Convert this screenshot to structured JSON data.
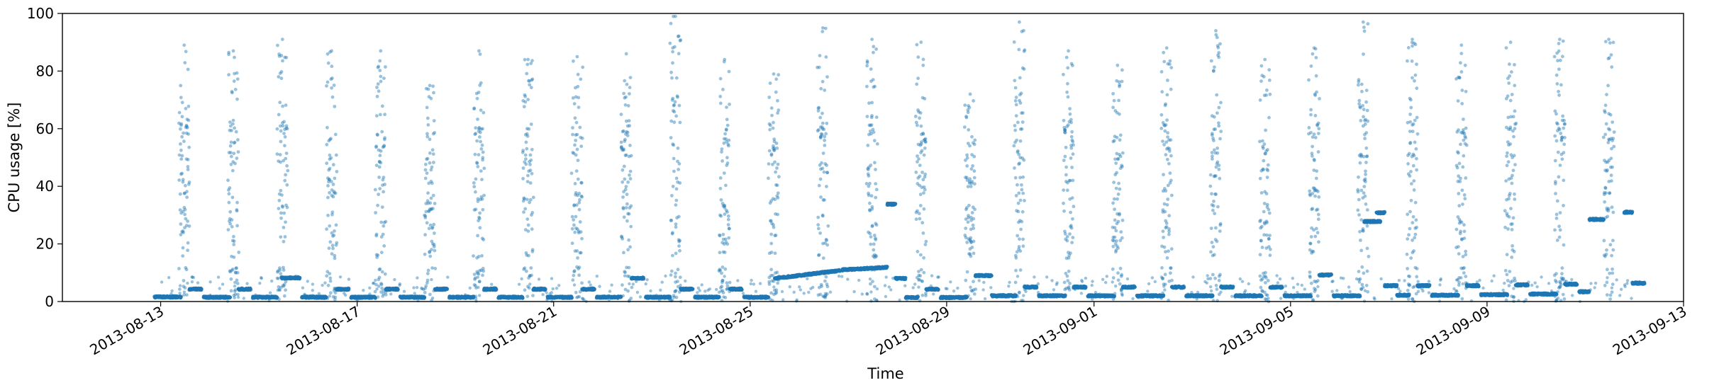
{
  "chart_data": {
    "type": "scatter",
    "title": "",
    "xlabel": "Time",
    "ylabel": "CPU usage [%]",
    "x_range": [
      "2013-08-11",
      "2013-09-13"
    ],
    "ylim": [
      0,
      100
    ],
    "yticks": [
      0,
      20,
      40,
      60,
      80,
      100
    ],
    "xticks": [
      "2013-08-13",
      "2013-08-17",
      "2013-08-21",
      "2013-08-25",
      "2013-08-29",
      "2013-09-01",
      "2013-09-05",
      "2013-09-09",
      "2013-09-13"
    ],
    "grid": false,
    "legend": "none",
    "marker_color": "#1f77b4",
    "marker_alpha": 0.45,
    "note_points": "approximately 5400 samples at roughly 7-minute intervals; low-level baseline values cluster between 1 and 10 percent, daytime bursts spread up to ~99 percent",
    "baseline_segments": [
      {
        "start": "2013-08-12 21:00",
        "end": "2013-08-13 10:00",
        "level": 1.6
      },
      {
        "start": "2013-08-13 14:00",
        "end": "2013-08-13 20:00",
        "level": 4.3
      },
      {
        "start": "2013-08-13 21:00",
        "end": "2013-08-14 10:00",
        "level": 1.5
      },
      {
        "start": "2013-08-14 14:00",
        "end": "2013-08-14 20:00",
        "level": 4.3
      },
      {
        "start": "2013-08-14 21:00",
        "end": "2013-08-15 09:00",
        "level": 1.5
      },
      {
        "start": "2013-08-15 11:00",
        "end": "2013-08-15 20:00",
        "level": 8.2
      },
      {
        "start": "2013-08-15 21:00",
        "end": "2013-08-16 09:00",
        "level": 1.5
      },
      {
        "start": "2013-08-16 14:00",
        "end": "2013-08-16 20:00",
        "level": 4.3
      },
      {
        "start": "2013-08-16 21:00",
        "end": "2013-08-17 09:00",
        "level": 1.5
      },
      {
        "start": "2013-08-17 14:00",
        "end": "2013-08-17 20:00",
        "level": 4.3
      },
      {
        "start": "2013-08-17 21:00",
        "end": "2013-08-18 09:00",
        "level": 1.5
      },
      {
        "start": "2013-08-18 14:00",
        "end": "2013-08-18 20:00",
        "level": 4.3
      },
      {
        "start": "2013-08-18 21:00",
        "end": "2013-08-19 09:00",
        "level": 1.5
      },
      {
        "start": "2013-08-19 14:00",
        "end": "2013-08-19 20:00",
        "level": 4.3
      },
      {
        "start": "2013-08-19 21:00",
        "end": "2013-08-20 09:00",
        "level": 1.5
      },
      {
        "start": "2013-08-20 14:00",
        "end": "2013-08-20 20:00",
        "level": 4.3
      },
      {
        "start": "2013-08-20 21:00",
        "end": "2013-08-21 09:00",
        "level": 1.5
      },
      {
        "start": "2013-08-21 14:00",
        "end": "2013-08-21 20:00",
        "level": 4.3
      },
      {
        "start": "2013-08-21 21:00",
        "end": "2013-08-22 09:00",
        "level": 1.5
      },
      {
        "start": "2013-08-22 14:00",
        "end": "2013-08-22 20:00",
        "level": 8.1
      },
      {
        "start": "2013-08-22 21:00",
        "end": "2013-08-23 09:00",
        "level": 1.5
      },
      {
        "start": "2013-08-23 14:00",
        "end": "2013-08-23 20:00",
        "level": 4.3
      },
      {
        "start": "2013-08-23 21:00",
        "end": "2013-08-24 09:00",
        "level": 1.5
      },
      {
        "start": "2013-08-24 14:00",
        "end": "2013-08-24 20:00",
        "level": 4.3
      },
      {
        "start": "2013-08-24 21:00",
        "end": "2013-08-25 09:00",
        "level": 1.5
      },
      {
        "start": "2013-08-25 12:00",
        "end": "2013-08-26 20:00",
        "level_start": 8.0,
        "level_end": 10.8
      },
      {
        "start": "2013-08-26 21:00",
        "end": "2013-08-27 19:00",
        "level_start": 11.0,
        "level_end": 11.9
      },
      {
        "start": "2013-08-27 19:00",
        "end": "2013-08-27 23:00",
        "level": 33.8
      },
      {
        "start": "2013-08-27 23:00",
        "end": "2013-08-28 04:00",
        "level": 8.0
      },
      {
        "start": "2013-08-28 04:00",
        "end": "2013-08-28 10:00",
        "level": 1.4
      },
      {
        "start": "2013-08-28 14:00",
        "end": "2013-08-28 20:00",
        "level": 4.3
      },
      {
        "start": "2013-08-28 21:00",
        "end": "2013-08-29 10:00",
        "level": 1.4
      },
      {
        "start": "2013-08-29 14:00",
        "end": "2013-08-29 22:00",
        "level": 9.0
      },
      {
        "start": "2013-08-29 22:00",
        "end": "2013-08-30 10:00",
        "level": 2.0
      },
      {
        "start": "2013-08-30 14:00",
        "end": "2013-08-30 20:00",
        "level": 5.0
      },
      {
        "start": "2013-08-30 21:00",
        "end": "2013-08-31 10:00",
        "level": 2.0
      },
      {
        "start": "2013-08-31 14:00",
        "end": "2013-08-31 20:00",
        "level": 5.0
      },
      {
        "start": "2013-08-31 21:00",
        "end": "2013-09-01 10:00",
        "level": 2.0
      },
      {
        "start": "2013-09-01 14:00",
        "end": "2013-09-01 20:00",
        "level": 5.0
      },
      {
        "start": "2013-09-01 21:00",
        "end": "2013-09-02 10:00",
        "level": 2.0
      },
      {
        "start": "2013-09-02 14:00",
        "end": "2013-09-02 20:00",
        "level": 5.0
      },
      {
        "start": "2013-09-02 21:00",
        "end": "2013-09-03 10:00",
        "level": 2.0
      },
      {
        "start": "2013-09-03 14:00",
        "end": "2013-09-03 20:00",
        "level": 5.0
      },
      {
        "start": "2013-09-03 21:00",
        "end": "2013-09-04 10:00",
        "level": 2.0
      },
      {
        "start": "2013-09-04 14:00",
        "end": "2013-09-04 20:00",
        "level": 5.0
      },
      {
        "start": "2013-09-04 21:00",
        "end": "2013-09-05 10:00",
        "level": 2.0
      },
      {
        "start": "2013-09-05 14:00",
        "end": "2013-09-05 20:00",
        "level": 9.2
      },
      {
        "start": "2013-09-05 21:00",
        "end": "2013-09-06 10:00",
        "level": 2.0
      },
      {
        "start": "2013-09-06 12:00",
        "end": "2013-09-06 20:00",
        "level": 27.8
      },
      {
        "start": "2013-09-06 18:00",
        "end": "2013-09-06 22:00",
        "level": 30.8
      },
      {
        "start": "2013-09-06 22:00",
        "end": "2013-09-07 04:00",
        "level": 5.5
      },
      {
        "start": "2013-09-07 04:00",
        "end": "2013-09-07 10:00",
        "level": 2.2
      },
      {
        "start": "2013-09-07 14:00",
        "end": "2013-09-07 20:00",
        "level": 5.5
      },
      {
        "start": "2013-09-07 21:00",
        "end": "2013-09-08 10:00",
        "level": 2.2
      },
      {
        "start": "2013-09-08 14:00",
        "end": "2013-09-08 20:00",
        "level": 5.5
      },
      {
        "start": "2013-09-08 21:00",
        "end": "2013-09-09 10:00",
        "level": 2.4
      },
      {
        "start": "2013-09-09 14:00",
        "end": "2013-09-09 20:00",
        "level": 5.8
      },
      {
        "start": "2013-09-09 21:00",
        "end": "2013-09-10 10:00",
        "level": 2.6
      },
      {
        "start": "2013-09-10 14:00",
        "end": "2013-09-10 20:00",
        "level": 6.0
      },
      {
        "start": "2013-09-10 21:00",
        "end": "2013-09-11 02:00",
        "level": 3.4
      },
      {
        "start": "2013-09-11 02:00",
        "end": "2013-09-11 09:00",
        "level": 28.5
      },
      {
        "start": "2013-09-11 19:00",
        "end": "2013-09-11 23:00",
        "level": 31.0
      },
      {
        "start": "2013-09-11 23:00",
        "end": "2013-09-12 05:00",
        "level": 6.4
      }
    ],
    "daily_peaks": [
      {
        "date": "2013-08-13",
        "max": 89
      },
      {
        "date": "2013-08-14",
        "max": 87
      },
      {
        "date": "2013-08-15",
        "max": 91
      },
      {
        "date": "2013-08-16",
        "max": 87
      },
      {
        "date": "2013-08-17",
        "max": 87
      },
      {
        "date": "2013-08-18",
        "max": 75
      },
      {
        "date": "2013-08-19",
        "max": 87
      },
      {
        "date": "2013-08-20",
        "max": 84
      },
      {
        "date": "2013-08-21",
        "max": 85
      },
      {
        "date": "2013-08-22",
        "max": 86
      },
      {
        "date": "2013-08-23",
        "max": 99
      },
      {
        "date": "2013-08-24",
        "max": 84
      },
      {
        "date": "2013-08-25",
        "max": 79
      },
      {
        "date": "2013-08-26",
        "max": 95
      },
      {
        "date": "2013-08-27",
        "max": 91
      },
      {
        "date": "2013-08-28",
        "max": 90
      },
      {
        "date": "2013-08-29",
        "max": 72
      },
      {
        "date": "2013-08-30",
        "max": 97
      },
      {
        "date": "2013-08-31",
        "max": 87
      },
      {
        "date": "2013-09-01",
        "max": 82
      },
      {
        "date": "2013-09-02",
        "max": 88
      },
      {
        "date": "2013-09-03",
        "max": 94
      },
      {
        "date": "2013-09-04",
        "max": 84
      },
      {
        "date": "2013-09-05",
        "max": 88
      },
      {
        "date": "2013-09-06",
        "max": 97
      },
      {
        "date": "2013-09-07",
        "max": 91
      },
      {
        "date": "2013-09-08",
        "max": 89
      },
      {
        "date": "2013-09-09",
        "max": 90
      },
      {
        "date": "2013-09-10",
        "max": 91
      },
      {
        "date": "2013-09-11",
        "max": 91
      }
    ]
  }
}
